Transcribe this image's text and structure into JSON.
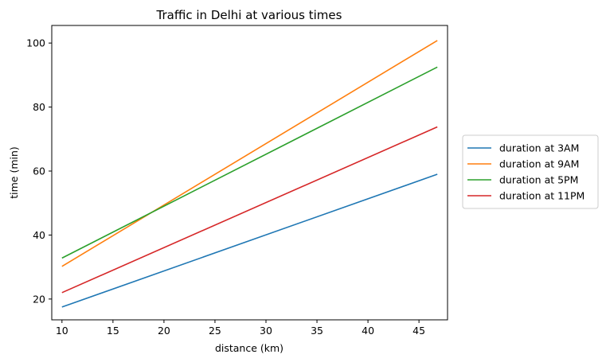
{
  "chart_data": {
    "type": "line",
    "title": "Traffic in Delhi at various times",
    "xlabel": "distance (km)",
    "ylabel": "time (min)",
    "xlim": [
      9.0,
      47.8
    ],
    "ylim": [
      13.5,
      105.5
    ],
    "xticks": [
      10,
      15,
      20,
      25,
      30,
      35,
      40,
      45
    ],
    "yticks": [
      20,
      40,
      60,
      80,
      100
    ],
    "grid": false,
    "legend_position": "right, outside plot",
    "series": [
      {
        "name": "duration at 3AM",
        "color": "#1f77b4",
        "x": [
          10,
          46.8
        ],
        "y": [
          17.5,
          59.0
        ]
      },
      {
        "name": "duration at 9AM",
        "color": "#ff7f0e",
        "x": [
          10,
          46.8
        ],
        "y": [
          30.2,
          100.8
        ]
      },
      {
        "name": "duration at 5PM",
        "color": "#2ca02c",
        "x": [
          10,
          46.8
        ],
        "y": [
          32.8,
          92.5
        ]
      },
      {
        "name": "duration at 11PM",
        "color": "#d62728",
        "x": [
          10,
          46.8
        ],
        "y": [
          22.0,
          73.8
        ]
      }
    ]
  }
}
